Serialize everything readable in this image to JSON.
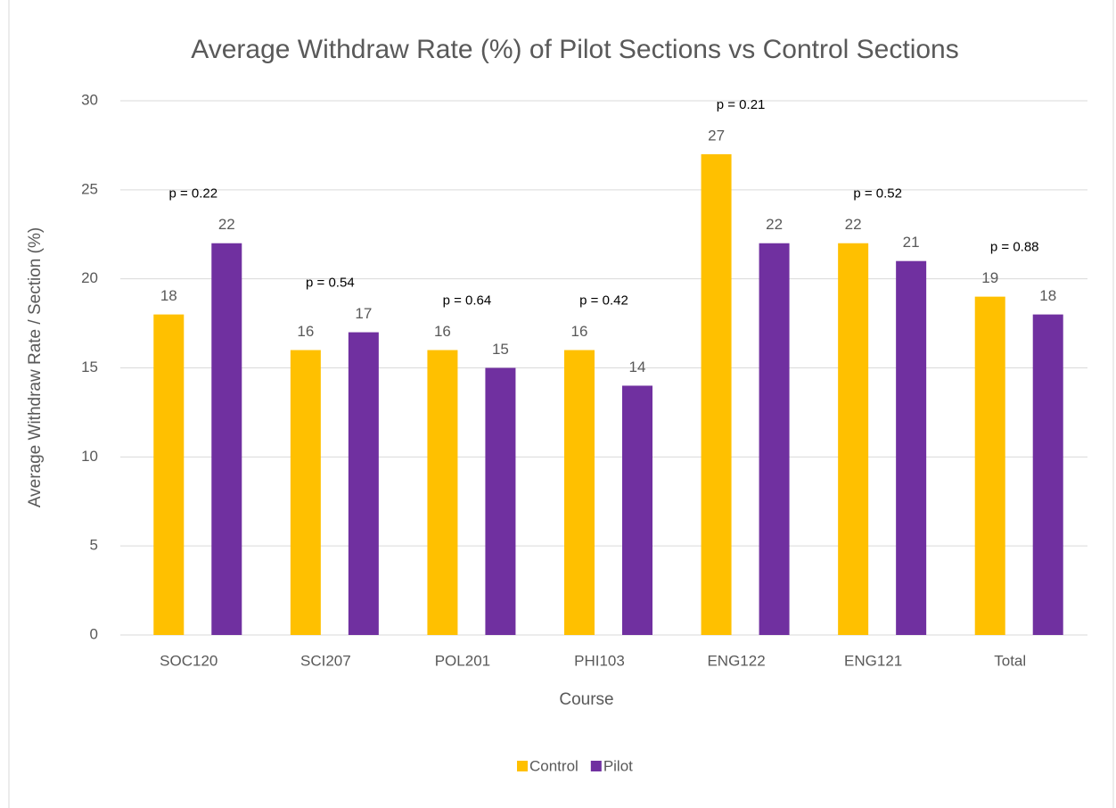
{
  "chart_data": {
    "type": "bar",
    "title": "Average Withdraw Rate (%) of Pilot Sections vs Control Sections",
    "x_label": "Course",
    "y_label": "Average Withdraw Rate / Section (%)",
    "categories": [
      "SOC120",
      "SCI207",
      "POL201",
      "PHI103",
      "ENG122",
      "ENG121",
      "Total"
    ],
    "series": [
      {
        "name": "Control",
        "color": "#ffc000",
        "values": [
          18,
          16,
          16,
          16,
          27,
          22,
          19
        ]
      },
      {
        "name": "Pilot",
        "color": "#7030a0",
        "values": [
          22,
          17,
          15,
          14,
          22,
          21,
          18
        ]
      }
    ],
    "annotations": [
      "p = 0.22",
      "p = 0.54",
      "p = 0.64",
      "p = 0.42",
      "p = 0.21",
      "p = 0.52",
      "p = 0.88"
    ],
    "ylim": [
      0,
      30
    ],
    "yticks": [
      0,
      5,
      10,
      15,
      20,
      25,
      30
    ],
    "grid": true,
    "legend": "bottom"
  }
}
